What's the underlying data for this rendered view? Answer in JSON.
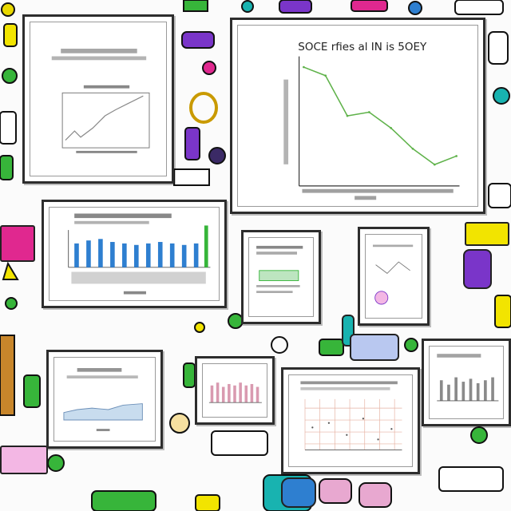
{
  "colors": {
    "frame": "#2d2d2d",
    "line_green": "#5fb24a",
    "line_grey": "#8a8a8a",
    "bar_blue": "#2e7fd0",
    "bar_pink": "#d99ab0",
    "accent_magenta": "#e0288f",
    "accent_yellow": "#f2e400",
    "accent_purple": "#7a35c9",
    "accent_teal": "#18b3b0",
    "accent_green": "#37b53a"
  },
  "main_chart": {
    "title": "SOCE rfies al IN is 5OEY"
  },
  "chart_data": [
    {
      "type": "line",
      "title": "SOCE rfies al IN is 5OEY",
      "x": [
        1,
        2,
        3,
        4,
        5,
        6,
        7,
        8
      ],
      "values": [
        95,
        88,
        55,
        58,
        45,
        28,
        15,
        22
      ],
      "grid": false
    }
  ],
  "icons": [
    "magenta-sticky-note-icon",
    "yellow-sticky-note-icon",
    "purple-robot-icon",
    "green-note-icon",
    "blue-marker-icon",
    "teal-bottle-icon",
    "pink-sticker-icon",
    "paper-clip-icon"
  ]
}
